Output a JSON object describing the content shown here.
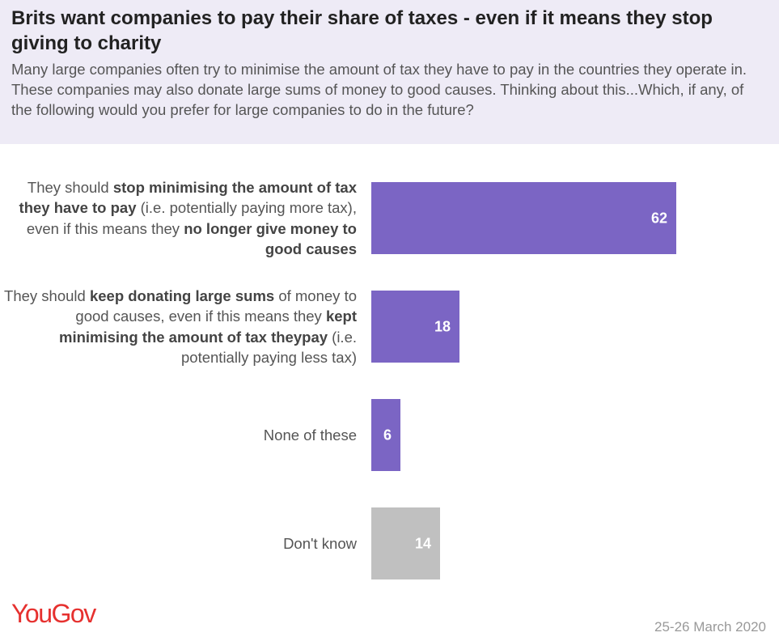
{
  "header": {
    "title": "Brits want companies to pay their share of taxes - even if it means they stop giving to charity",
    "subtitle": "Many large companies often try to minimise the amount of tax they have to pay in the countries they operate in. These companies may also donate large sums of money to good causes. Thinking about this...Which, if any, of the following would you prefer for large companies to do in the future?"
  },
  "chart_data": {
    "type": "bar",
    "orientation": "horizontal",
    "categories": [
      {
        "parts": [
          [
            "They should ",
            false
          ],
          [
            "stop minimising the amount of tax they have to pay",
            true
          ],
          [
            " (i.e. potentially paying more tax), even if this means they ",
            false
          ],
          [
            "no longer give money to good causes",
            true
          ]
        ]
      },
      {
        "parts": [
          [
            "They should ",
            false
          ],
          [
            "keep donating large sums",
            true
          ],
          [
            " of money to good causes, even if this means they ",
            false
          ],
          [
            "kept minimising the amount of tax theypay",
            true
          ],
          [
            " (i.e. potentially paying less tax)",
            false
          ]
        ]
      },
      {
        "parts": [
          [
            "None of these",
            false
          ]
        ]
      },
      {
        "parts": [
          [
            "Don't know",
            false
          ]
        ]
      }
    ],
    "values": [
      62,
      18,
      6,
      14
    ],
    "colors": [
      "#7b65c4",
      "#7b65c4",
      "#7b65c4",
      "#c0c0c0"
    ],
    "xlim": [
      0,
      100
    ],
    "grid": false,
    "legend": "none"
  },
  "footer": {
    "brand": "YouGov",
    "date": "25-26 March 2020"
  }
}
